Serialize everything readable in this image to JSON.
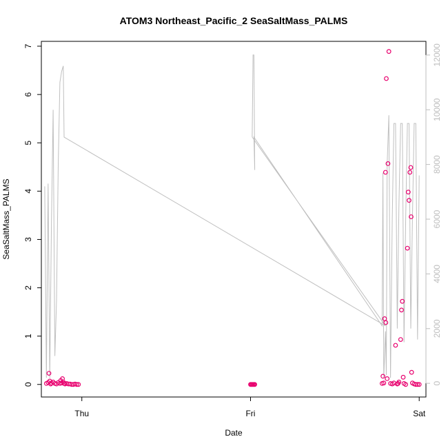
{
  "chart_data": {
    "type": "scatter",
    "title": "ATOM3 Northeast_Pacific_2 SeaSaltMass_PALMS",
    "xlabel": "Date",
    "ylabel": "SeaSaltMass_PALMS",
    "x_ticks": [
      {
        "value": 1.0,
        "label": "Thu"
      },
      {
        "value": 2.0,
        "label": "Fri"
      },
      {
        "value": 3.0,
        "label": "Sat"
      }
    ],
    "xlim": [
      0.76,
      3.04
    ],
    "ylim": [
      -0.26,
      7.1
    ],
    "y_ticks": [
      0,
      1,
      2,
      3,
      4,
      5,
      6,
      7
    ],
    "y2lim": [
      -500,
      12500
    ],
    "y2_ticks": [
      0,
      2000,
      4000,
      6000,
      8000,
      10000,
      12000
    ],
    "grid": false,
    "colors": {
      "points": "#e8006e",
      "altitude_line": "#bfbfbf",
      "axis": "#000000",
      "y2_axis": "#bdbdbd"
    },
    "series": [
      {
        "kind": "points",
        "axis": "left",
        "points": [
          [
            0.79,
            0.02
          ],
          [
            0.8,
            0.04
          ],
          [
            0.805,
            0.23
          ],
          [
            0.81,
            0.07
          ],
          [
            0.815,
            0.01
          ],
          [
            0.82,
            0.03
          ],
          [
            0.83,
            0.05
          ],
          [
            0.84,
            0.02
          ],
          [
            0.85,
            0.01
          ],
          [
            0.86,
            0.04
          ],
          [
            0.87,
            0.02
          ],
          [
            0.875,
            0.08
          ],
          [
            0.88,
            0.03
          ],
          [
            0.885,
            0.12
          ],
          [
            0.89,
            0.05
          ],
          [
            0.895,
            0.02
          ],
          [
            0.9,
            0.01
          ],
          [
            0.91,
            0.02
          ],
          [
            0.92,
            0.01
          ],
          [
            0.93,
            0.01
          ],
          [
            0.94,
            0.0
          ],
          [
            0.95,
            0.0
          ],
          [
            0.96,
            0.01
          ],
          [
            0.97,
            0.0
          ],
          [
            0.98,
            0.0
          ],
          [
            2.0,
            0.0
          ],
          [
            2.005,
            0.0
          ],
          [
            2.01,
            0.0
          ],
          [
            2.015,
            0.0
          ],
          [
            2.02,
            0.0
          ],
          [
            2.025,
            0.0
          ],
          [
            2.78,
            0.02
          ],
          [
            2.785,
            0.17
          ],
          [
            2.79,
            0.03
          ],
          [
            2.795,
            1.36
          ],
          [
            2.8,
            4.39
          ],
          [
            2.802,
            1.28
          ],
          [
            2.805,
            6.33
          ],
          [
            2.81,
            0.12
          ],
          [
            2.815,
            4.57
          ],
          [
            2.82,
            6.89
          ],
          [
            2.83,
            0.02
          ],
          [
            2.84,
            0.01
          ],
          [
            2.85,
            0.03
          ],
          [
            2.86,
            0.81
          ],
          [
            2.87,
            0.01
          ],
          [
            2.875,
            0.02
          ],
          [
            2.88,
            0.05
          ],
          [
            2.89,
            0.93
          ],
          [
            2.895,
            1.54
          ],
          [
            2.9,
            1.72
          ],
          [
            2.905,
            0.15
          ],
          [
            2.91,
            0.02
          ],
          [
            2.92,
            0.0
          ],
          [
            2.93,
            2.82
          ],
          [
            2.935,
            3.98
          ],
          [
            2.94,
            3.81
          ],
          [
            2.945,
            4.39
          ],
          [
            2.95,
            4.49
          ],
          [
            2.952,
            3.47
          ],
          [
            2.955,
            0.25
          ],
          [
            2.96,
            0.03
          ],
          [
            2.97,
            0.01
          ],
          [
            2.98,
            0.0
          ],
          [
            2.99,
            0.0
          ],
          [
            3.0,
            0.0
          ]
        ]
      },
      {
        "kind": "line",
        "axis": "right",
        "points": [
          [
            0.78,
            7200
          ],
          [
            0.79,
            200
          ],
          [
            0.8,
            7300
          ],
          [
            0.81,
            200
          ],
          [
            0.82,
            6000
          ],
          [
            0.83,
            10000
          ],
          [
            0.84,
            1000
          ],
          [
            0.85,
            3000
          ],
          [
            0.86,
            8000
          ],
          [
            0.87,
            11000
          ],
          [
            0.88,
            11400
          ],
          [
            0.885,
            11500
          ],
          [
            0.89,
            11600
          ],
          [
            0.895,
            9000
          ],
          [
            2.8,
            2100
          ],
          [
            2.01,
            9000
          ],
          [
            2.015,
            12000
          ],
          [
            2.02,
            12000
          ],
          [
            2.025,
            7800
          ],
          [
            2.02,
            9000
          ],
          [
            2.78,
            2100
          ],
          [
            2.785,
            7700
          ],
          [
            2.79,
            200
          ],
          [
            2.8,
            1900
          ],
          [
            2.805,
            300
          ],
          [
            2.81,
            8000
          ],
          [
            2.82,
            9800
          ],
          [
            2.83,
            200
          ],
          [
            2.84,
            6000
          ],
          [
            2.85,
            9500
          ],
          [
            2.86,
            9500
          ],
          [
            2.87,
            2000
          ],
          [
            2.88,
            6500
          ],
          [
            2.89,
            9500
          ],
          [
            2.9,
            9500
          ],
          [
            2.91,
            1500
          ],
          [
            2.92,
            6000
          ],
          [
            2.93,
            9500
          ],
          [
            2.94,
            9500
          ],
          [
            2.95,
            2000
          ],
          [
            2.96,
            6000
          ],
          [
            2.97,
            9500
          ],
          [
            2.98,
            9500
          ],
          [
            2.99,
            1600
          ],
          [
            3.0,
            7600
          ]
        ]
      }
    ]
  }
}
